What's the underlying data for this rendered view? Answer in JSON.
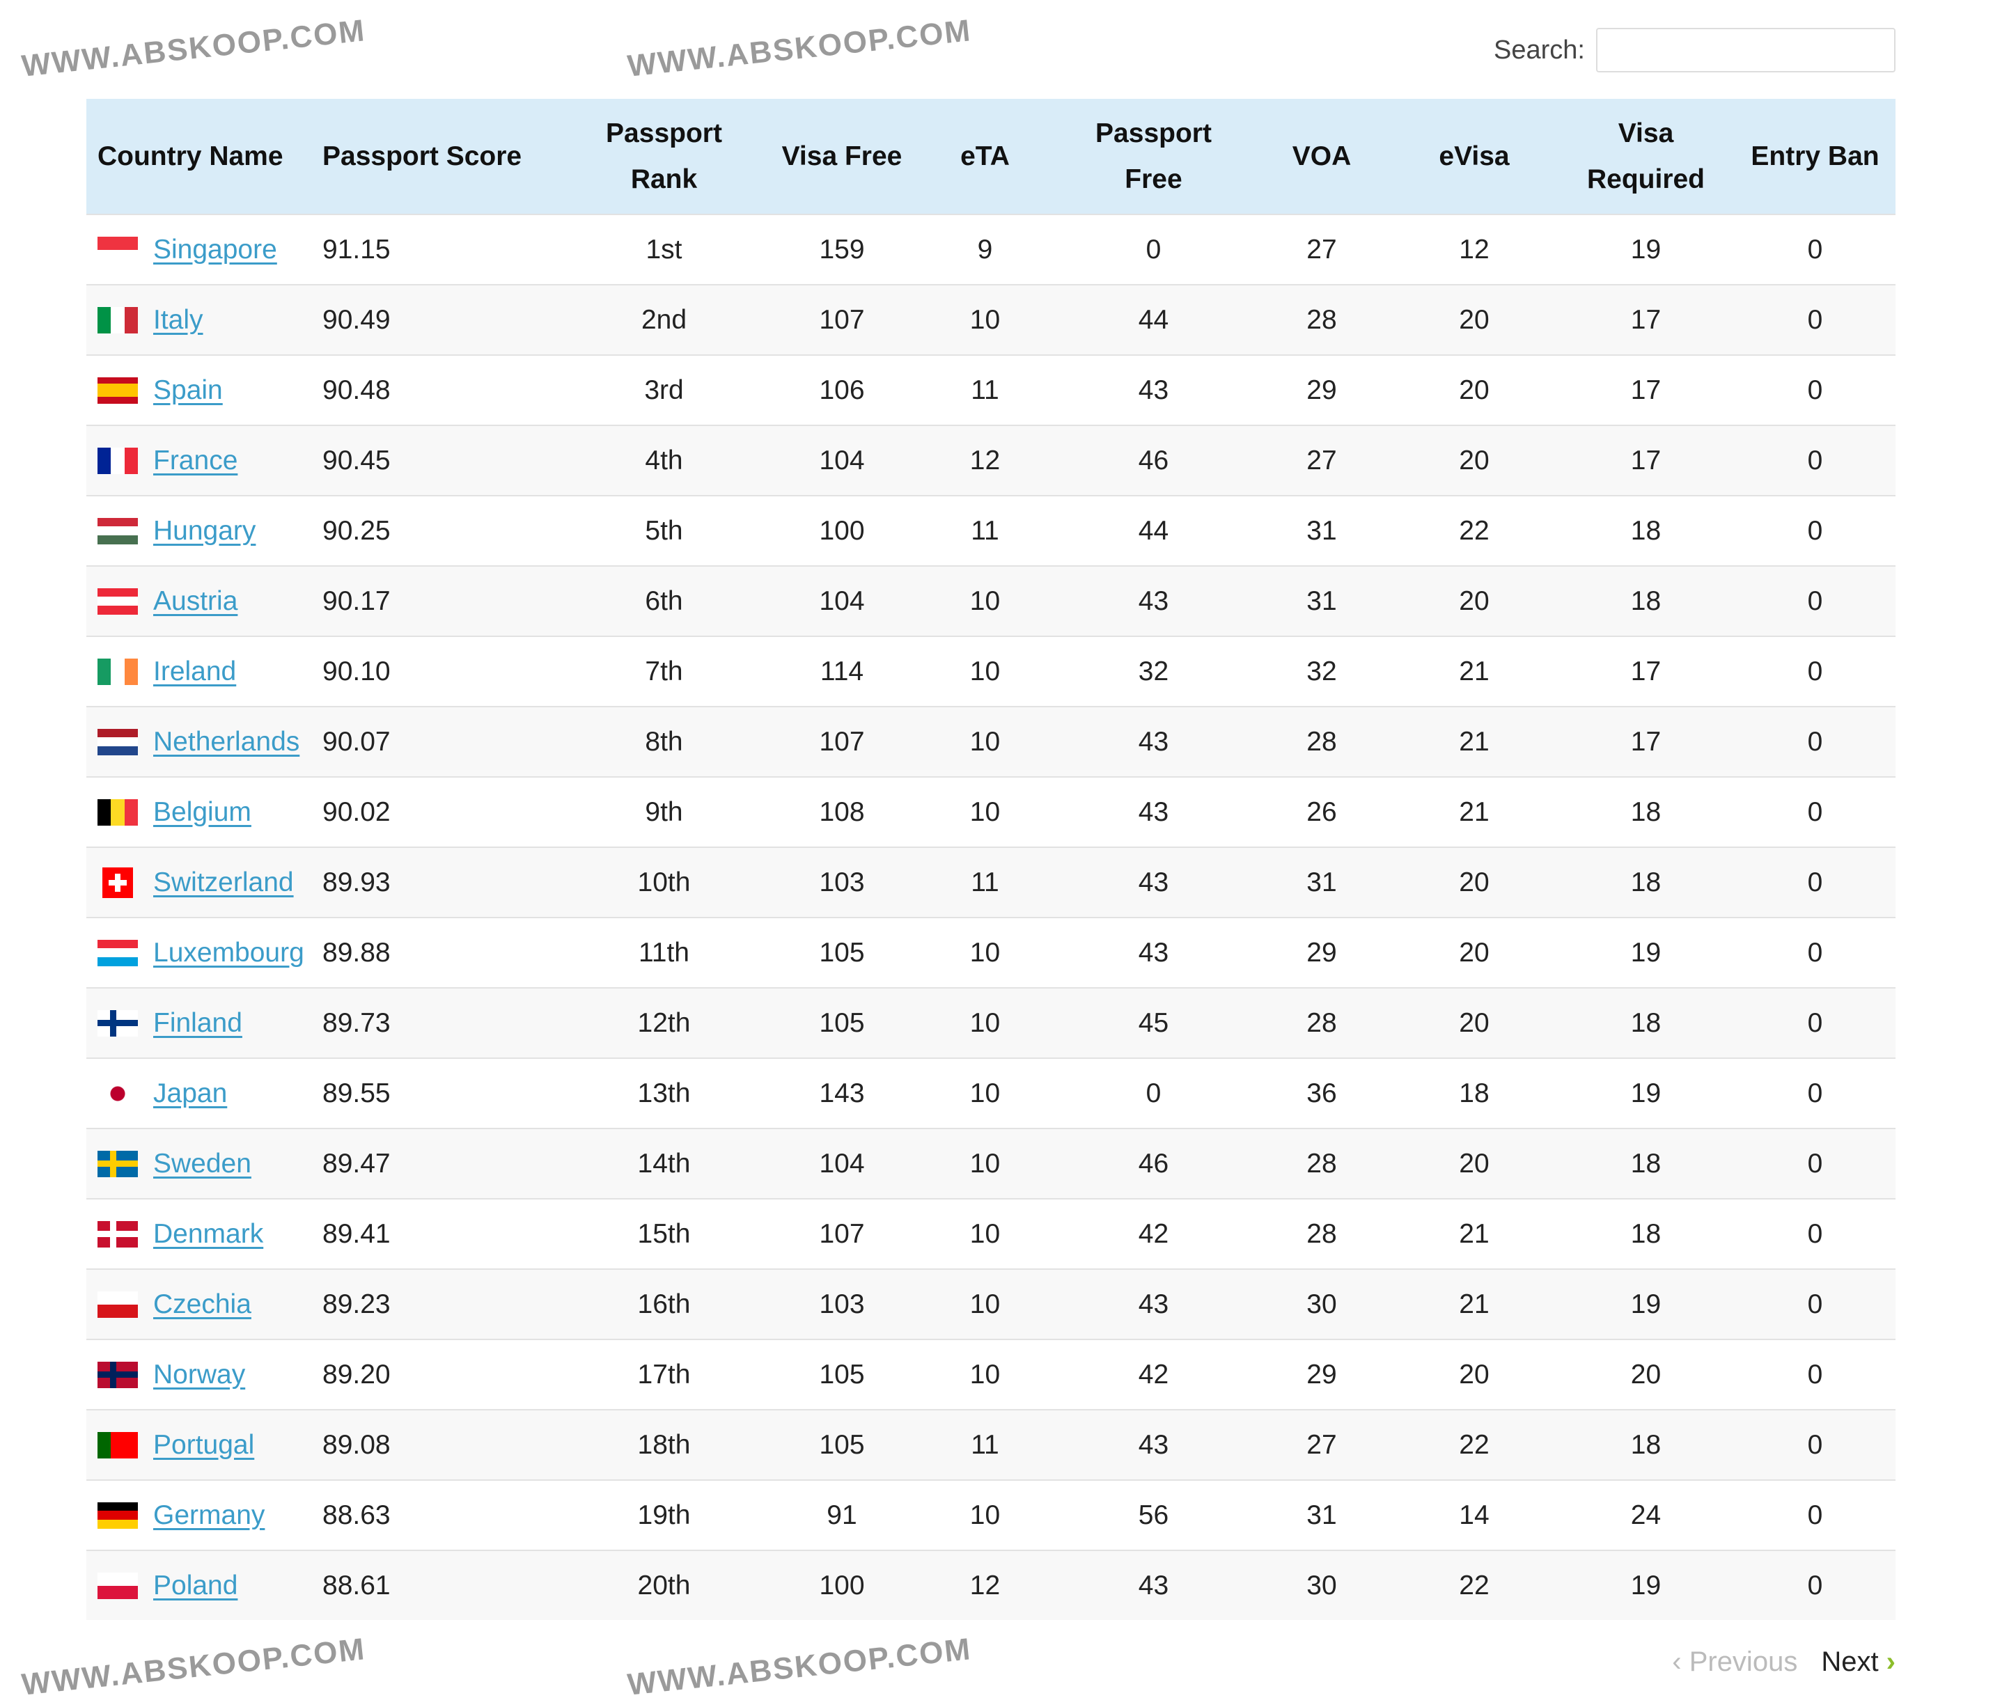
{
  "search": {
    "label": "Search:",
    "value": "",
    "placeholder": ""
  },
  "columns": [
    "Country Name",
    "Passport Score",
    "Passport Rank",
    "Visa Free",
    "eTA",
    "Passport Free",
    "VOA",
    "eVisa",
    "Visa Required",
    "Entry Ban"
  ],
  "rows": [
    {
      "country": "Singapore",
      "score": "91.15",
      "rank": "1st",
      "visa_free": "159",
      "eta": "9",
      "passport_free": "0",
      "voa": "27",
      "evisa": "12",
      "visa_required": "19",
      "entry_ban": "0",
      "flag": {
        "dir": "h",
        "colors": [
          "#ef3340",
          "#ffffff"
        ]
      }
    },
    {
      "country": "Italy",
      "score": "90.49",
      "rank": "2nd",
      "visa_free": "107",
      "eta": "10",
      "passport_free": "44",
      "voa": "28",
      "evisa": "20",
      "visa_required": "17",
      "entry_ban": "0",
      "flag": {
        "dir": "v",
        "colors": [
          "#009246",
          "#ffffff",
          "#ce2b37"
        ]
      }
    },
    {
      "country": "Spain",
      "score": "90.48",
      "rank": "3rd",
      "visa_free": "106",
      "eta": "11",
      "passport_free": "43",
      "voa": "29",
      "evisa": "20",
      "visa_required": "17",
      "entry_ban": "0",
      "flag": {
        "dir": "h",
        "colors": [
          "#c60b1e",
          "#ffc400",
          "#ffc400",
          "#c60b1e"
        ]
      }
    },
    {
      "country": "France",
      "score": "90.45",
      "rank": "4th",
      "visa_free": "104",
      "eta": "12",
      "passport_free": "46",
      "voa": "27",
      "evisa": "20",
      "visa_required": "17",
      "entry_ban": "0",
      "flag": {
        "dir": "v",
        "colors": [
          "#002395",
          "#ffffff",
          "#ed2939"
        ]
      }
    },
    {
      "country": "Hungary",
      "score": "90.25",
      "rank": "5th",
      "visa_free": "100",
      "eta": "11",
      "passport_free": "44",
      "voa": "31",
      "evisa": "22",
      "visa_required": "18",
      "entry_ban": "0",
      "flag": {
        "dir": "h",
        "colors": [
          "#ce2939",
          "#ffffff",
          "#477050"
        ]
      }
    },
    {
      "country": "Austria",
      "score": "90.17",
      "rank": "6th",
      "visa_free": "104",
      "eta": "10",
      "passport_free": "43",
      "voa": "31",
      "evisa": "20",
      "visa_required": "18",
      "entry_ban": "0",
      "flag": {
        "dir": "h",
        "colors": [
          "#ed2939",
          "#ffffff",
          "#ed2939"
        ]
      }
    },
    {
      "country": "Ireland",
      "score": "90.10",
      "rank": "7th",
      "visa_free": "114",
      "eta": "10",
      "passport_free": "32",
      "voa": "32",
      "evisa": "21",
      "visa_required": "17",
      "entry_ban": "0",
      "flag": {
        "dir": "v",
        "colors": [
          "#169b62",
          "#ffffff",
          "#ff883e"
        ]
      }
    },
    {
      "country": "Netherlands",
      "score": "90.07",
      "rank": "8th",
      "visa_free": "107",
      "eta": "10",
      "passport_free": "43",
      "voa": "28",
      "evisa": "21",
      "visa_required": "17",
      "entry_ban": "0",
      "flag": {
        "dir": "h",
        "colors": [
          "#ae1c28",
          "#ffffff",
          "#21468b"
        ]
      }
    },
    {
      "country": "Belgium",
      "score": "90.02",
      "rank": "9th",
      "visa_free": "108",
      "eta": "10",
      "passport_free": "43",
      "voa": "26",
      "evisa": "21",
      "visa_required": "18",
      "entry_ban": "0",
      "flag": {
        "dir": "v",
        "colors": [
          "#000000",
          "#fdda24",
          "#ef3340"
        ]
      }
    },
    {
      "country": "Switzerland",
      "score": "89.93",
      "rank": "10th",
      "visa_free": "103",
      "eta": "11",
      "passport_free": "43",
      "voa": "31",
      "evisa": "20",
      "visa_required": "18",
      "entry_ban": "0",
      "flag": {
        "dir": "cross",
        "colors": [
          "#ff0000",
          "#ffffff"
        ]
      }
    },
    {
      "country": "Luxembourg",
      "score": "89.88",
      "rank": "11th",
      "visa_free": "105",
      "eta": "10",
      "passport_free": "43",
      "voa": "29",
      "evisa": "20",
      "visa_required": "19",
      "entry_ban": "0",
      "flag": {
        "dir": "h",
        "colors": [
          "#ed2939",
          "#ffffff",
          "#00a1de"
        ]
      }
    },
    {
      "country": "Finland",
      "score": "89.73",
      "rank": "12th",
      "visa_free": "105",
      "eta": "10",
      "passport_free": "45",
      "voa": "28",
      "evisa": "20",
      "visa_required": "18",
      "entry_ban": "0",
      "flag": {
        "dir": "nordic",
        "colors": [
          "#ffffff",
          "#003580"
        ]
      }
    },
    {
      "country": "Japan",
      "score": "89.55",
      "rank": "13th",
      "visa_free": "143",
      "eta": "10",
      "passport_free": "0",
      "voa": "36",
      "evisa": "18",
      "visa_required": "19",
      "entry_ban": "0",
      "flag": {
        "dir": "disc",
        "colors": [
          "#ffffff",
          "#bc002d"
        ]
      }
    },
    {
      "country": "Sweden",
      "score": "89.47",
      "rank": "14th",
      "visa_free": "104",
      "eta": "10",
      "passport_free": "46",
      "voa": "28",
      "evisa": "20",
      "visa_required": "18",
      "entry_ban": "0",
      "flag": {
        "dir": "nordic",
        "colors": [
          "#006aa7",
          "#fecc00"
        ]
      }
    },
    {
      "country": "Denmark",
      "score": "89.41",
      "rank": "15th",
      "visa_free": "107",
      "eta": "10",
      "passport_free": "42",
      "voa": "28",
      "evisa": "21",
      "visa_required": "18",
      "entry_ban": "0",
      "flag": {
        "dir": "nordic",
        "colors": [
          "#c8102e",
          "#ffffff"
        ]
      }
    },
    {
      "country": "Czechia",
      "score": "89.23",
      "rank": "16th",
      "visa_free": "103",
      "eta": "10",
      "passport_free": "43",
      "voa": "30",
      "evisa": "21",
      "visa_required": "19",
      "entry_ban": "0",
      "flag": {
        "dir": "h",
        "colors": [
          "#ffffff",
          "#d7141a"
        ]
      }
    },
    {
      "country": "Norway",
      "score": "89.20",
      "rank": "17th",
      "visa_free": "105",
      "eta": "10",
      "passport_free": "42",
      "voa": "29",
      "evisa": "20",
      "visa_required": "20",
      "entry_ban": "0",
      "flag": {
        "dir": "nordic",
        "colors": [
          "#ba0c2f",
          "#00205b"
        ]
      }
    },
    {
      "country": "Portugal",
      "score": "89.08",
      "rank": "18th",
      "visa_free": "105",
      "eta": "11",
      "passport_free": "43",
      "voa": "27",
      "evisa": "22",
      "visa_required": "18",
      "entry_ban": "0",
      "flag": {
        "dir": "v",
        "colors": [
          "#006600",
          "#ff0000",
          "#ff0000"
        ]
      }
    },
    {
      "country": "Germany",
      "score": "88.63",
      "rank": "19th",
      "visa_free": "91",
      "eta": "10",
      "passport_free": "56",
      "voa": "31",
      "evisa": "14",
      "visa_required": "24",
      "entry_ban": "0",
      "flag": {
        "dir": "h",
        "colors": [
          "#000000",
          "#dd0000",
          "#ffce00"
        ]
      }
    },
    {
      "country": "Poland",
      "score": "88.61",
      "rank": "20th",
      "visa_free": "100",
      "eta": "12",
      "passport_free": "43",
      "voa": "30",
      "evisa": "22",
      "visa_required": "19",
      "entry_ban": "0",
      "flag": {
        "dir": "h",
        "colors": [
          "#ffffff",
          "#dc143c"
        ]
      }
    }
  ],
  "pagination": {
    "previous": "Previous",
    "next": "Next"
  },
  "watermark": "WWW.ABSKOOP.COM",
  "colors": {
    "header_bg": "#d9ecf8",
    "link": "#3b9cc9",
    "next_chevron": "#8cbd2a"
  }
}
